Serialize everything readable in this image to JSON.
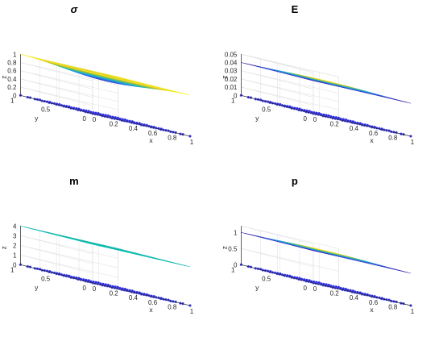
{
  "chart_data": [
    {
      "type": "surface",
      "title": "σ",
      "title_style": "italic",
      "xlabel": "x",
      "ylabel": "y",
      "zlabel": "z",
      "xlim": [
        0,
        1
      ],
      "ylim": [
        0,
        1
      ],
      "zlim": [
        0,
        1
      ],
      "x_ticks": [
        "0",
        "0.2",
        "0.4",
        "0.6",
        "0.8",
        "1"
      ],
      "y_ticks": [
        "0",
        "0.5",
        "1"
      ],
      "z_ticks": [
        "0",
        "0.2",
        "0.4",
        "0.6",
        "0.8",
        "1"
      ],
      "surface": {
        "shape": "bowl",
        "edge_value": 1.0,
        "center_value": 0.85,
        "colormap": "parula"
      },
      "nodes": {
        "grid": 11,
        "z": 0,
        "color": "#2a2ae0"
      },
      "grid": true
    },
    {
      "type": "surface",
      "title": "E",
      "title_style": "bold",
      "xlabel": "x",
      "ylabel": "y",
      "zlabel": "z",
      "xlim": [
        0,
        1
      ],
      "ylim": [
        0,
        1
      ],
      "zlim": [
        0,
        0.05
      ],
      "x_ticks": [
        "0",
        "0.2",
        "0.4",
        "0.6",
        "0.8",
        "1"
      ],
      "y_ticks": [
        "0",
        "0.5",
        "1"
      ],
      "z_ticks": [
        "0",
        "0.01",
        "0.02",
        "0.03",
        "0.04",
        "0.05"
      ],
      "surface": {
        "shape": "dome",
        "edge_value": 0.04,
        "center_value": 0.0425,
        "colormap": "parula"
      },
      "nodes": {
        "grid": 11,
        "z": 0,
        "color": "#2a2ae0"
      },
      "grid": true
    },
    {
      "type": "surface",
      "title": "m",
      "title_style": "bold",
      "xlabel": "x",
      "ylabel": "y",
      "zlabel": "z",
      "xlim": [
        0,
        1
      ],
      "ylim": [
        0,
        1
      ],
      "zlim": [
        0,
        4
      ],
      "x_ticks": [
        "0",
        "0.2",
        "0.4",
        "0.6",
        "0.8",
        "1"
      ],
      "y_ticks": [
        "0",
        "0.5",
        "1"
      ],
      "z_ticks": [
        "0",
        "1",
        "2",
        "3",
        "4"
      ],
      "surface": {
        "shape": "flat",
        "edge_value": 4,
        "center_value": 4,
        "color": "#13bbb0"
      },
      "nodes": {
        "grid": 11,
        "z": 0,
        "color": "#2a2ae0"
      },
      "grid": true
    },
    {
      "type": "surface",
      "title": "p",
      "title_style": "bold",
      "xlabel": "x",
      "ylabel": "y",
      "zlabel": "z",
      "xlim": [
        0,
        1
      ],
      "ylim": [
        0,
        1
      ],
      "zlim": [
        0,
        1.2
      ],
      "x_ticks": [
        "0",
        "0.2",
        "0.4",
        "0.6",
        "0.8",
        "1"
      ],
      "y_ticks": [
        "0",
        "0.5",
        "1"
      ],
      "z_ticks": [
        "0",
        "0.5",
        "1"
      ],
      "surface": {
        "shape": "dome",
        "edge_value": 1.0,
        "center_value": 1.06,
        "colormap": "parula"
      },
      "nodes": {
        "grid": 11,
        "z": 0,
        "color": "#2a2ae0"
      },
      "grid": true
    }
  ]
}
